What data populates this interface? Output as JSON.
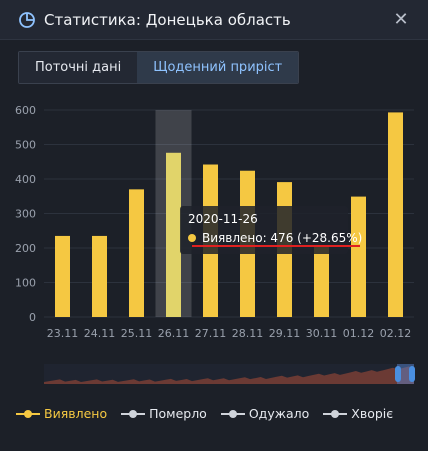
{
  "header": {
    "title": "Статистика: Донецька область",
    "close_glyph": "✕",
    "icon": "pie-chart-icon"
  },
  "tabs": [
    {
      "label": "Поточні дані",
      "active": false
    },
    {
      "label": "Щоденний приріст",
      "active": true
    }
  ],
  "colors": {
    "accent": "#f5c842",
    "highlight": "#e1d46a",
    "tab_active": "#8fc3ff",
    "underline": "#e02020"
  },
  "chart_data": {
    "type": "bar",
    "categories": [
      "23.11",
      "24.11",
      "25.11",
      "26.11",
      "27.11",
      "28.11",
      "29.11",
      "30.11",
      "01.12",
      "02.12"
    ],
    "series": [
      {
        "name": "Виявлено",
        "values": [
          235,
          235,
          370,
          476,
          442,
          424,
          391,
          205,
          349,
          593
        ]
      }
    ],
    "ylim": [
      0,
      600
    ],
    "yticks": [
      0,
      100,
      200,
      300,
      400,
      500,
      600
    ],
    "highlight_index": 3,
    "grid": true
  },
  "tooltip": {
    "date": "2020-11-26",
    "text": "Виявлено: 476 (+28.65%)"
  },
  "legend": [
    {
      "label": "Виявлено",
      "color": "#f5c842",
      "active": true
    },
    {
      "label": "Померло",
      "color": "#cfd3da",
      "active": false
    },
    {
      "label": "Одужало",
      "color": "#cfd3da",
      "active": false
    },
    {
      "label": "Хворіє",
      "color": "#cfd3da",
      "active": false
    }
  ]
}
